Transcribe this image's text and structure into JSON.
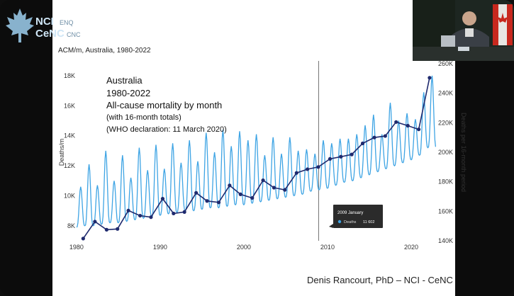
{
  "logo": {
    "line1": "NCI",
    "line2": "CeNC",
    "faded1": "ENQ",
    "faded2": "CNC"
  },
  "chart_header": "ACM/m, Australia, 1980-2022",
  "credit": "Denis Rancourt, PhD  –  NCI - CeNC",
  "chart_data": {
    "type": "line",
    "annotation_lines": [
      "Australia",
      "1980-2022",
      "All-cause mortality by month",
      "(with 16-month totals)",
      "(WHO declaration: 11 March 2020)"
    ],
    "ylabel": "Deaths/m",
    "y2label": "Deaths per 16-month period",
    "x_ticks": [
      "1980",
      "1990",
      "2000",
      "2010",
      "2020"
    ],
    "y_ticks": [
      "8K",
      "10K",
      "12K",
      "14K",
      "16K",
      "18K"
    ],
    "y2_ticks": [
      "140K",
      "160K",
      "180K",
      "200K",
      "220K",
      "240K",
      "260K"
    ],
    "xlim": [
      1979.5,
      2022.8
    ],
    "ylim": [
      7000,
      18800
    ],
    "y2lim": [
      140000,
      260000
    ],
    "cursor_year": 2008.95,
    "tooltip": {
      "title": "2009 January",
      "label": "Deaths",
      "value": "11 602"
    },
    "monthly": {
      "name": "Deaths",
      "color": "#3ea4e4",
      "start_year": 1980,
      "yearly_peaks": [
        10600,
        12100,
        10700,
        13000,
        11000,
        12700,
        11200,
        13200,
        11700,
        13400,
        11800,
        13500,
        12200,
        13700,
        12300,
        14200,
        12900,
        14400,
        13300,
        14300,
        13700,
        14100,
        12700,
        13900,
        12800,
        13900,
        13000,
        13100,
        12800,
        13700,
        13500,
        13800,
        13800,
        14100,
        14700,
        15400,
        14100,
        16200,
        15000,
        15500,
        15100,
        16900,
        18000
      ],
      "yearly_troughs": [
        7900,
        8000,
        8000,
        8100,
        8200,
        8200,
        8300,
        8400,
        8500,
        8600,
        8700,
        8800,
        8900,
        9000,
        9000,
        9100,
        9200,
        9200,
        9300,
        9400,
        9400,
        9500,
        9600,
        9700,
        9800,
        9900,
        10000,
        10100,
        10300,
        10400,
        10500,
        10700,
        10900,
        11000,
        11200,
        11400,
        11600,
        11800,
        12000,
        12200,
        12400,
        12700,
        13200
      ]
    },
    "totals": {
      "name": "16-month totals",
      "color": "#1f2a6e",
      "points": [
        [
          1980.8,
          141500
        ],
        [
          1982.2,
          153000
        ],
        [
          1983.6,
          147500
        ],
        [
          1984.9,
          148000
        ],
        [
          1986.2,
          160500
        ],
        [
          1987.6,
          157000
        ],
        [
          1988.9,
          156000
        ],
        [
          1990.3,
          168500
        ],
        [
          1991.6,
          158500
        ],
        [
          1992.9,
          159500
        ],
        [
          1994.3,
          172500
        ],
        [
          1995.6,
          167000
        ],
        [
          1997.0,
          166000
        ],
        [
          1998.3,
          177500
        ],
        [
          1999.6,
          171500
        ],
        [
          2001.0,
          169000
        ],
        [
          2002.3,
          181000
        ],
        [
          2003.6,
          176000
        ],
        [
          2004.9,
          174500
        ],
        [
          2006.3,
          186000
        ],
        [
          2007.6,
          188500
        ],
        [
          2008.9,
          190000
        ],
        [
          2010.3,
          195500
        ],
        [
          2011.6,
          197000
        ],
        [
          2012.9,
          198500
        ],
        [
          2014.2,
          206000
        ],
        [
          2015.6,
          210000
        ],
        [
          2016.9,
          211000
        ],
        [
          2018.2,
          220500
        ],
        [
          2019.6,
          218000
        ],
        [
          2020.9,
          215500
        ],
        [
          2022.2,
          250500
        ]
      ]
    }
  }
}
